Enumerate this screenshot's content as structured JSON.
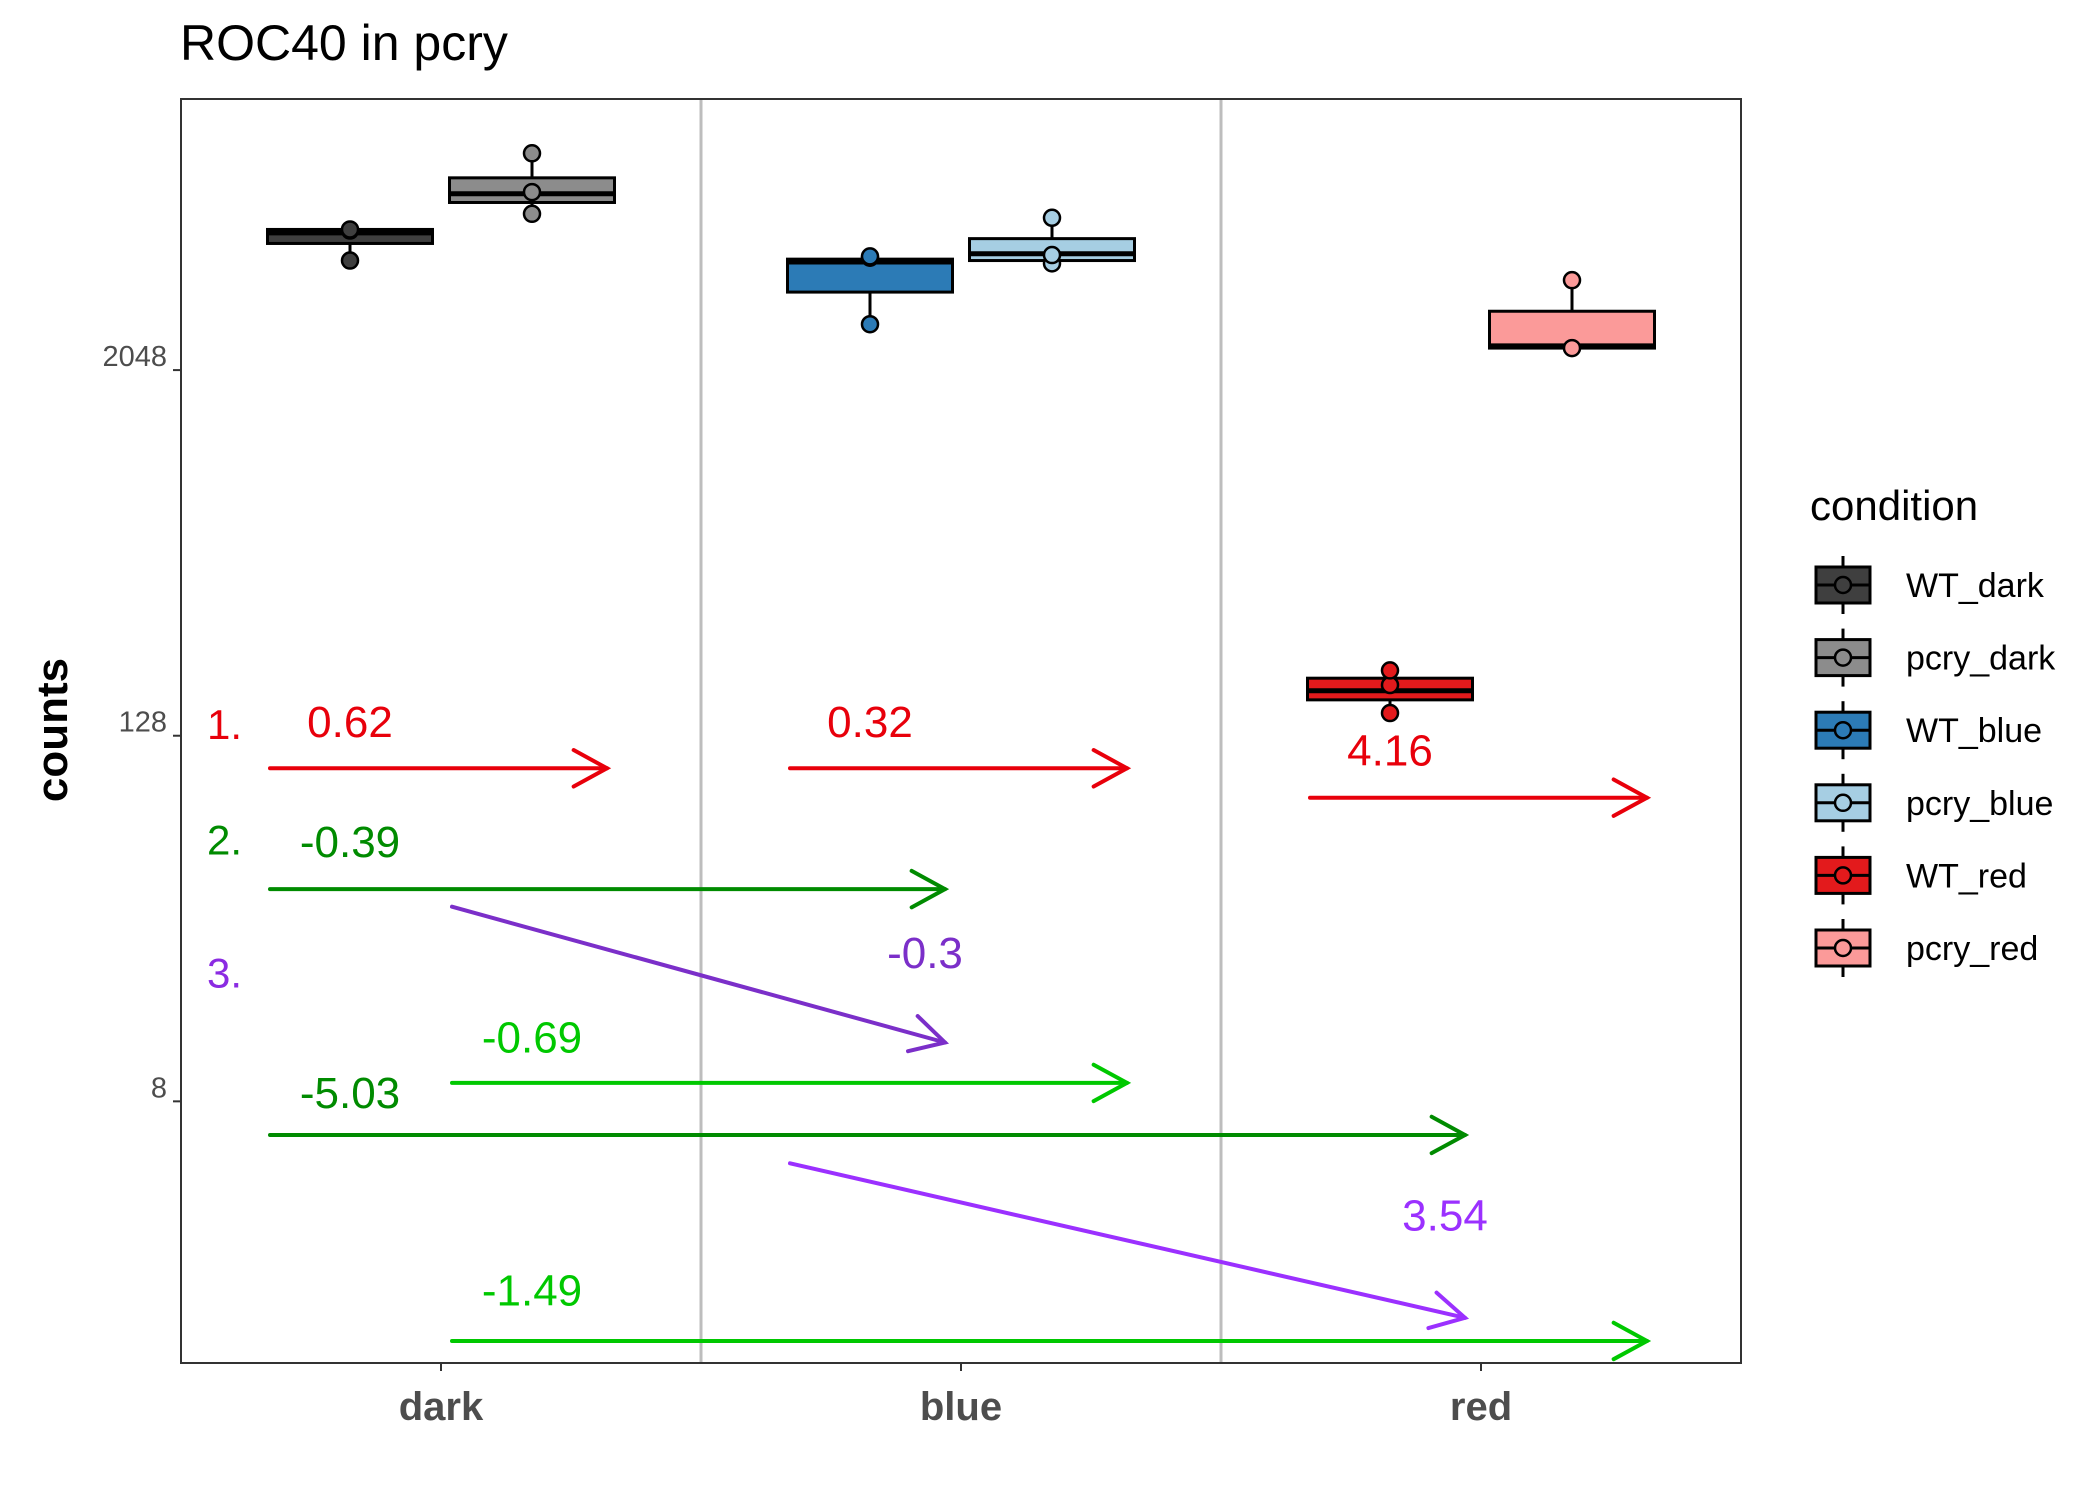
{
  "chart_data": {
    "type": "box",
    "title": "ROC40 in pcry",
    "xlabel": "",
    "ylabel": "counts",
    "y_scale": "log2",
    "y_ticks": [
      8,
      128,
      2048
    ],
    "y_tick_labels": [
      "8",
      "128",
      "2048"
    ],
    "ylim": [
      1.1,
      16000
    ],
    "categories": [
      "dark",
      "blue",
      "red"
    ],
    "grid": "vertical separators between categories",
    "legend": {
      "title": "condition",
      "position": "right",
      "entries": [
        {
          "name": "WT_dark",
          "color": "#3f3f3f"
        },
        {
          "name": "pcry_dark",
          "color": "#8c8c8c"
        },
        {
          "name": "WT_blue",
          "color": "#2c7bb6"
        },
        {
          "name": "pcry_blue",
          "color": "#a6cee3"
        },
        {
          "name": "WT_red",
          "color": "#e31a1c"
        },
        {
          "name": "pcry_red",
          "color": "#fb9a99"
        }
      ]
    },
    "series": [
      {
        "name": "WT_dark",
        "category": "dark",
        "slot": 0,
        "color": "#3f3f3f",
        "q1": 5350,
        "median": 5800,
        "q3": 5950,
        "whisker_low": 4700,
        "whisker_high": 5950,
        "points": [
          4700,
          5900,
          5950
        ]
      },
      {
        "name": "pcry_dark",
        "category": "dark",
        "slot": 1,
        "color": "#8c8c8c",
        "q1": 7300,
        "median": 7800,
        "q3": 8800,
        "whisker_low": 6700,
        "whisker_high": 10600,
        "points": [
          6700,
          7900,
          10600
        ]
      },
      {
        "name": "pcry_blue",
        "category": "blue",
        "slot": 1,
        "color": "#a6cee3",
        "q1": 4700,
        "median": 4950,
        "q3": 5550,
        "whisker_low": 4600,
        "whisker_high": 6500,
        "points": [
          4600,
          4900,
          6500
        ]
      },
      {
        "name": "WT_blue",
        "category": "blue",
        "slot": 0,
        "color": "#2c7bb6",
        "q1": 3700,
        "median": 4650,
        "q3": 4750,
        "whisker_low": 2900,
        "whisker_high": 4750,
        "points": [
          2900,
          4800,
          4850
        ]
      },
      {
        "name": "WT_red",
        "category": "red",
        "slot": 0,
        "color": "#e31a1c",
        "q1": 168,
        "median": 180,
        "q3": 198,
        "whisker_low": 152,
        "whisker_high": 210,
        "points": [
          152,
          188,
          210
        ]
      },
      {
        "name": "pcry_red",
        "category": "red",
        "slot": 1,
        "color": "#fb9a99",
        "q1": 2420,
        "median": 2460,
        "q3": 3200,
        "whisker_low": 2420,
        "whisker_high": 4050,
        "points": [
          2420,
          4050
        ]
      }
    ],
    "step_labels": [
      {
        "text": "1.",
        "color": "#e8000b",
        "y": 125
      },
      {
        "text": "2.",
        "color": "#008b00",
        "y": 52
      },
      {
        "text": "3.",
        "color": "#8b2be2",
        "y": 19
      }
    ],
    "annotations": [
      {
        "label": "0.62",
        "color": "#e8000b",
        "x_from": "dark-WT",
        "x_to": "dark-pcry",
        "y": 100,
        "label_y": 127
      },
      {
        "label": "0.32",
        "color": "#e8000b",
        "x_from": "blue-WT",
        "x_to": "blue-pcry",
        "y": 100,
        "label_y": 127
      },
      {
        "label": "4.16",
        "color": "#e8000b",
        "x_from": "red-WT",
        "x_to": "red-pcry",
        "y": 80,
        "label_y": 102
      },
      {
        "label": "-0.39",
        "color": "#008b00",
        "x_from": "dark-WT",
        "x_to": "blue-WT",
        "y": 40,
        "label_y": 51
      },
      {
        "label": "-5.03",
        "color": "#008b00",
        "x_from": "dark-WT",
        "x_to": "red-WT",
        "y": 6.2,
        "label_y": 7.6
      },
      {
        "label": "-0.69",
        "color": "#00c800",
        "x_from": "dark-pcry",
        "x_to": "blue-pcry",
        "y": 9.2,
        "label_y": 11.6
      },
      {
        "label": "-1.49",
        "color": "#00c800",
        "x_from": "dark-pcry",
        "x_to": "red-pcry",
        "y": 1.3,
        "label_y": 1.7
      },
      {
        "label": "-0.3",
        "color": "#7b2fc9",
        "x_from": "dark-pcry",
        "x_to": "blue-WT",
        "y_from": 35,
        "y_to": 12.5,
        "label_y": 22
      },
      {
        "label": "3.54",
        "color": "#9b30ff",
        "x_from": "blue-WT",
        "x_to": "red-WT",
        "y_from": 5.0,
        "y_to": 1.55,
        "label_y": 3.0
      }
    ]
  }
}
